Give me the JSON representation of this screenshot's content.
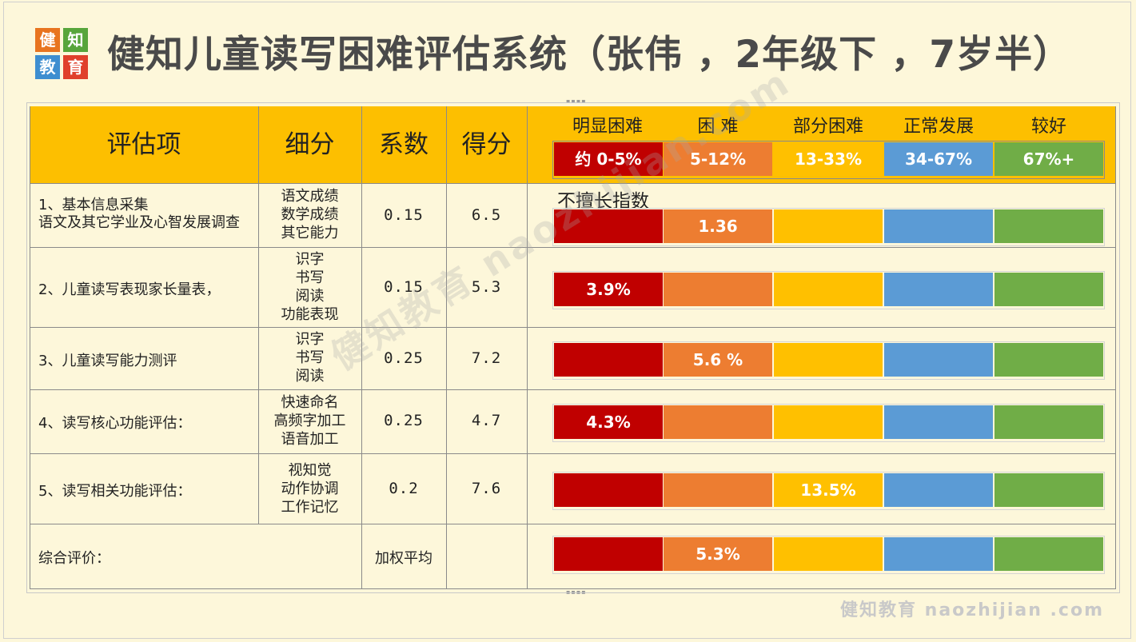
{
  "logo": [
    "健",
    "知",
    "教",
    "育"
  ],
  "title": "健知儿童读写困难评估系统（张伟 ，2年级下 ，7岁半）",
  "headers": {
    "item": "评估项",
    "sub": "细分",
    "coef": "系数",
    "score": "得分"
  },
  "scale": {
    "labels": [
      "明显困难",
      "困 难",
      "部分困难",
      "正常发展",
      "较好"
    ],
    "ranges": [
      "约 0-5%",
      "5-12%",
      "13-33%",
      "34-67%",
      "67%+"
    ],
    "colors": [
      "#c00000",
      "#ed7d31",
      "#ffc000",
      "#5b9bd5",
      "#70ad47"
    ]
  },
  "bar_caption": "不擅长指数",
  "rows": [
    {
      "item": [
        "1、基本信息采集",
        "语文及其它学业及心智发展调查"
      ],
      "sub": [
        "语文成绩",
        "数学成绩",
        "其它能力"
      ],
      "coef": "0.15",
      "score": "6.5",
      "bar_value": "1.36",
      "bar_segment": 1
    },
    {
      "item": [
        "2、儿童读写表现家长量表，"
      ],
      "sub": [
        "识字",
        "书写",
        "阅读",
        "功能表现"
      ],
      "coef": "0.15",
      "score": "5.3",
      "bar_value": "3.9%",
      "bar_segment": 0
    },
    {
      "item": [
        "3、儿童读写能力测评"
      ],
      "sub": [
        "识字",
        "书写",
        "阅读"
      ],
      "coef": "0.25",
      "score": "7.2",
      "bar_value": "5.6 %",
      "bar_segment": 1
    },
    {
      "item": [
        "4、读写核心功能评估："
      ],
      "sub": [
        "快速命名",
        "高频字加工",
        "语音加工"
      ],
      "coef": "0.25",
      "score": "4.7",
      "bar_value": "4.3%",
      "bar_segment": 0
    },
    {
      "item": [
        "5、读写相关功能评估："
      ],
      "sub": [
        "视知觉",
        "动作协调",
        "工作记忆"
      ],
      "coef": "0.2",
      "score": "7.6",
      "bar_value": "13.5%",
      "bar_segment": 2
    }
  ],
  "summary": {
    "label": "综合评价：",
    "method": "加权平均",
    "bar_value": "5.3%",
    "bar_segment": 1
  },
  "watermark": {
    "center": "健知教育 naozhijian.com",
    "corner": "健知教育 naozhijian .com"
  }
}
